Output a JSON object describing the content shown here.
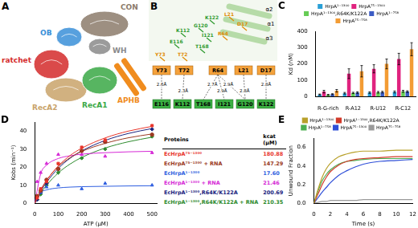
{
  "panel_A": {
    "label": "A",
    "domains": [
      {
        "name": "CON",
        "color": "#8c7b6b"
      },
      {
        "name": "OB",
        "color": "#3a8fd8"
      },
      {
        "name": "WH",
        "color": "#8a8a8a"
      },
      {
        "name": "ratchet",
        "color": "#d42a2a"
      },
      {
        "name": "RecA2",
        "color": "#c9a36a"
      },
      {
        "name": "RecA1",
        "color": "#3aa845"
      },
      {
        "name": "APHB",
        "color": "#f08c1e"
      }
    ]
  },
  "panel_B": {
    "label": "B",
    "helices": [
      "α2",
      "α1",
      "α3"
    ],
    "structure_labels": [
      {
        "text": "L21",
        "color": "#e08a00"
      },
      {
        "text": "D17",
        "color": "#e08a00"
      },
      {
        "text": "K122",
        "color": "#2e9a2e"
      },
      {
        "text": "G120",
        "color": "#2e9a2e"
      },
      {
        "text": "R64",
        "color": "#e08a00"
      },
      {
        "text": "I121",
        "color": "#2e9a2e"
      },
      {
        "text": "K112",
        "color": "#2e9a2e"
      },
      {
        "text": "T168",
        "color": "#2e9a2e"
      },
      {
        "text": "E116",
        "color": "#2e9a2e"
      },
      {
        "text": "Y73",
        "color": "#e08a00"
      },
      {
        "text": "T72",
        "color": "#e08a00"
      }
    ],
    "diagram": {
      "top": {
        "color": "#f4a23c",
        "residues": [
          "Y73",
          "T72",
          "R64",
          "L21",
          "D17"
        ]
      },
      "bottom": {
        "color": "#3cb043",
        "residues": [
          "E116",
          "K112",
          "T168",
          "I121",
          "G120",
          "K122"
        ]
      },
      "bonds": [
        {
          "from": "Y73",
          "to": "E116",
          "distance": "2.6Å"
        },
        {
          "from": "T72",
          "to": "K112",
          "distance": "2.3Å"
        },
        {
          "from": "R64",
          "to": "T168",
          "distance": "2.7Å"
        },
        {
          "from": "R64",
          "to": "I121",
          "distance": "2.9Å"
        },
        {
          "from": "R64",
          "to": "G120",
          "distance": "2.9Å"
        },
        {
          "from": "L21",
          "to": "G120",
          "distance": "2.8Å"
        },
        {
          "from": "D17",
          "to": "K122",
          "distance": "2.8Å"
        }
      ]
    }
  },
  "chart_data": [
    {
      "label": "C",
      "type": "bar",
      "categories": [
        "R-G-rich",
        "R-A12",
        "R-U12",
        "R-C12"
      ],
      "y_label": "Kd (nM)",
      "ylim": [
        0,
        400
      ],
      "yticks": [
        0,
        100,
        200,
        300,
        400
      ],
      "grid": false,
      "legend": "top",
      "series": [
        {
          "name": "HrpA¹⁻¹³⁰⁰",
          "color": "#2a9fd6",
          "values": [
            12,
            20,
            24,
            28
          ],
          "errors": [
            3,
            5,
            5,
            6
          ]
        },
        {
          "name": "HrpA⁷⁵⁻¹³⁰⁰",
          "color": "#e0237f",
          "values": [
            30,
            140,
            170,
            230
          ],
          "errors": [
            8,
            30,
            25,
            35
          ]
        },
        {
          "name": "HrpA¹⁻¹³⁰⁰,R64K/K122A",
          "color": "#66cc55",
          "values": [
            10,
            22,
            26,
            32
          ],
          "errors": [
            3,
            4,
            5,
            6
          ]
        },
        {
          "name": "HrpA¹⁻⁷⁵⁸",
          "color": "#3b5bc4",
          "values": [
            14,
            24,
            27,
            30
          ],
          "errors": [
            3,
            5,
            5,
            5
          ]
        },
        {
          "name": "HrpA⁷⁵⁻⁷⁵⁸",
          "color": "#f39c34",
          "values": [
            35,
            155,
            200,
            290
          ],
          "errors": [
            8,
            35,
            30,
            40
          ]
        }
      ]
    },
    {
      "label": "D",
      "type": "scatter",
      "x_label": "ATP (μM)",
      "y_label": "Kobs (min⁻¹)",
      "xlim": [
        0,
        520
      ],
      "xticks": [
        0,
        100,
        200,
        300,
        400,
        500
      ],
      "ylim": [
        0,
        45
      ],
      "yticks": [
        0,
        10,
        20,
        30,
        40
      ],
      "grid": false,
      "table_header": [
        "Proteins",
        "kcat (μM)"
      ],
      "x": [
        10,
        25,
        50,
        100,
        200,
        300,
        500
      ],
      "fit_x": [
        0,
        25,
        50,
        100,
        150,
        200,
        300,
        400,
        500
      ],
      "series": [
        {
          "name": "EcHrpA⁷⁵⁻¹³⁰⁰",
          "color": "#e8352b",
          "marker": "square",
          "kcat": "180.88",
          "values": [
            3,
            8,
            12,
            22,
            31,
            35,
            43
          ],
          "fit": [
            0,
            7.1,
            12.6,
            20.7,
            26.4,
            30.5,
            36.2,
            40.0,
            42.6
          ]
        },
        {
          "name": "EcHrpA⁷⁵⁻¹³⁰⁰ + RNA",
          "color": "#9b3a22",
          "marker": "circle",
          "kcat": "147.29",
          "values": [
            4,
            7,
            13,
            19,
            29,
            34,
            38
          ],
          "fit": [
            0,
            7.3,
            12.7,
            20.3,
            25.2,
            28.7,
            33.2,
            36.3,
            38.4
          ]
        },
        {
          "name": "EcHrpA¹⁻¹³⁰⁰",
          "color": "#2f5fe0",
          "marker": "triangle",
          "kcat": "17.60",
          "values": [
            4,
            6,
            9,
            10,
            8,
            11,
            10
          ],
          "fit": [
            0,
            5.9,
            7.4,
            8.5,
            8.95,
            9.2,
            9.4,
            9.6,
            9.7
          ]
        },
        {
          "name": "EcHrpA¹⁻¹³⁰⁰ + RNA",
          "color": "#d62ad6",
          "marker": "triangle",
          "kcat": "21.46",
          "values": [
            12,
            17,
            22,
            27,
            27,
            26,
            28
          ],
          "fit": [
            0,
            16.3,
            21.1,
            24.8,
            26.3,
            27.2,
            28.0,
            28.5,
            28.8
          ]
        },
        {
          "name": "EcHrpA¹⁻¹³⁰⁰,R64K/K122A",
          "color": "#1a237e",
          "marker": "diamond",
          "kcat": "200.69",
          "values": [
            2,
            6,
            11,
            19,
            29,
            34,
            41
          ],
          "fit": [
            0,
            6.4,
            11.6,
            19.3,
            24.9,
            29.0,
            34.8,
            38.7,
            41.4
          ]
        },
        {
          "name": "EcHrpA¹⁻¹³⁰⁰,R64K/K122A + RNA",
          "color": "#2e8b2e",
          "marker": "diamond",
          "kcat": "210.35",
          "values": [
            2,
            5,
            10,
            17,
            25,
            30,
            37
          ],
          "fit": [
            0,
            5.5,
            10.0,
            16.8,
            21.7,
            25.4,
            30.6,
            34.1,
            36.6
          ]
        }
      ]
    },
    {
      "label": "E",
      "type": "line",
      "x_label": "Time (s)",
      "y_label": "Unwound Fraction",
      "xlim": [
        0,
        12
      ],
      "xticks": [
        0,
        2,
        4,
        6,
        8,
        10,
        12
      ],
      "ylim": [
        0,
        0.7
      ],
      "yticks": [
        {
          "value": 0,
          "label": "0.0"
        },
        0.2,
        0.4,
        0.6
      ],
      "grid": false,
      "legend": "top",
      "x": [
        0,
        0.5,
        1,
        1.5,
        2,
        3,
        4,
        5,
        6,
        8,
        10,
        12
      ],
      "series": [
        {
          "name": "HrpA¹⁻¹³⁰⁰",
          "color": "#b8a02a",
          "values": [
            0,
            0.15,
            0.28,
            0.37,
            0.43,
            0.5,
            0.53,
            0.55,
            0.56,
            0.56,
            0.57,
            0.57
          ]
        },
        {
          "name": "HrpA¹⁻¹³⁰⁰,R64K/K122A",
          "color": "#d23a2a",
          "values": [
            0,
            0.1,
            0.2,
            0.28,
            0.34,
            0.41,
            0.45,
            0.47,
            0.48,
            0.49,
            0.5,
            0.5
          ]
        },
        {
          "name": "HrpA¹⁻⁷⁵⁸",
          "color": "#4caf50",
          "values": [
            0,
            0.13,
            0.24,
            0.31,
            0.36,
            0.42,
            0.45,
            0.46,
            0.47,
            0.48,
            0.48,
            0.48
          ]
        },
        {
          "name": "HrpA⁷⁵⁻¹³⁰⁰",
          "color": "#2f4fd8",
          "values": [
            0,
            0.06,
            0.12,
            0.17,
            0.22,
            0.3,
            0.35,
            0.39,
            0.42,
            0.45,
            0.46,
            0.47
          ]
        },
        {
          "name": "HrpA⁷⁵⁻⁷⁵⁸",
          "color": "#9a9a9a",
          "values": [
            0,
            0.01,
            0.02,
            0.02,
            0.03,
            0.03,
            0.03,
            0.03,
            0.04,
            0.04,
            0.04,
            0.04
          ]
        }
      ]
    }
  ]
}
